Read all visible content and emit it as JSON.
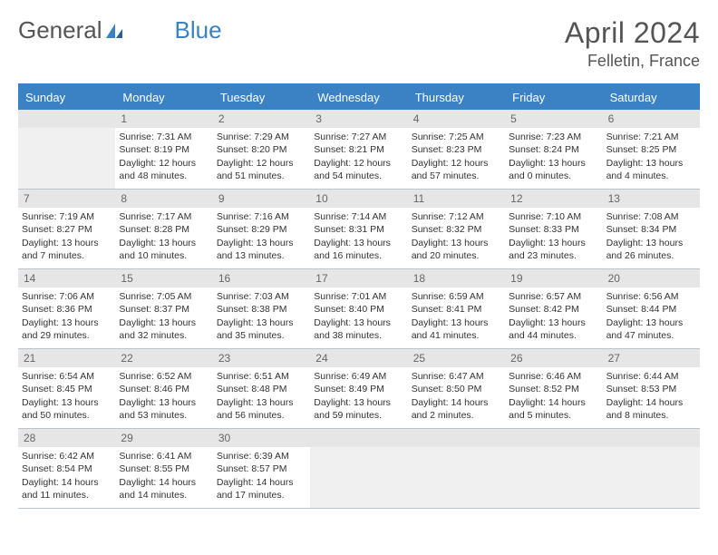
{
  "logo": {
    "text1": "General",
    "text2": "Blue"
  },
  "title": "April 2024",
  "location": "Felletin, France",
  "colors": {
    "header_bg": "#3b82c4",
    "header_text": "#ffffff",
    "daynum_bg": "#e6e6e6",
    "daynum_text": "#666666",
    "border": "#b8c4d0",
    "empty_bg": "#f0f0f0",
    "body_text": "#333333"
  },
  "weekdays": [
    "Sunday",
    "Monday",
    "Tuesday",
    "Wednesday",
    "Thursday",
    "Friday",
    "Saturday"
  ],
  "grid": {
    "rows": 5,
    "cols": 7,
    "start_offset": 1,
    "days_in_month": 30
  },
  "days": {
    "1": {
      "sunrise": "7:31 AM",
      "sunset": "8:19 PM",
      "daylight": "12 hours and 48 minutes."
    },
    "2": {
      "sunrise": "7:29 AM",
      "sunset": "8:20 PM",
      "daylight": "12 hours and 51 minutes."
    },
    "3": {
      "sunrise": "7:27 AM",
      "sunset": "8:21 PM",
      "daylight": "12 hours and 54 minutes."
    },
    "4": {
      "sunrise": "7:25 AM",
      "sunset": "8:23 PM",
      "daylight": "12 hours and 57 minutes."
    },
    "5": {
      "sunrise": "7:23 AM",
      "sunset": "8:24 PM",
      "daylight": "13 hours and 0 minutes."
    },
    "6": {
      "sunrise": "7:21 AM",
      "sunset": "8:25 PM",
      "daylight": "13 hours and 4 minutes."
    },
    "7": {
      "sunrise": "7:19 AM",
      "sunset": "8:27 PM",
      "daylight": "13 hours and 7 minutes."
    },
    "8": {
      "sunrise": "7:17 AM",
      "sunset": "8:28 PM",
      "daylight": "13 hours and 10 minutes."
    },
    "9": {
      "sunrise": "7:16 AM",
      "sunset": "8:29 PM",
      "daylight": "13 hours and 13 minutes."
    },
    "10": {
      "sunrise": "7:14 AM",
      "sunset": "8:31 PM",
      "daylight": "13 hours and 16 minutes."
    },
    "11": {
      "sunrise": "7:12 AM",
      "sunset": "8:32 PM",
      "daylight": "13 hours and 20 minutes."
    },
    "12": {
      "sunrise": "7:10 AM",
      "sunset": "8:33 PM",
      "daylight": "13 hours and 23 minutes."
    },
    "13": {
      "sunrise": "7:08 AM",
      "sunset": "8:34 PM",
      "daylight": "13 hours and 26 minutes."
    },
    "14": {
      "sunrise": "7:06 AM",
      "sunset": "8:36 PM",
      "daylight": "13 hours and 29 minutes."
    },
    "15": {
      "sunrise": "7:05 AM",
      "sunset": "8:37 PM",
      "daylight": "13 hours and 32 minutes."
    },
    "16": {
      "sunrise": "7:03 AM",
      "sunset": "8:38 PM",
      "daylight": "13 hours and 35 minutes."
    },
    "17": {
      "sunrise": "7:01 AM",
      "sunset": "8:40 PM",
      "daylight": "13 hours and 38 minutes."
    },
    "18": {
      "sunrise": "6:59 AM",
      "sunset": "8:41 PM",
      "daylight": "13 hours and 41 minutes."
    },
    "19": {
      "sunrise": "6:57 AM",
      "sunset": "8:42 PM",
      "daylight": "13 hours and 44 minutes."
    },
    "20": {
      "sunrise": "6:56 AM",
      "sunset": "8:44 PM",
      "daylight": "13 hours and 47 minutes."
    },
    "21": {
      "sunrise": "6:54 AM",
      "sunset": "8:45 PM",
      "daylight": "13 hours and 50 minutes."
    },
    "22": {
      "sunrise": "6:52 AM",
      "sunset": "8:46 PM",
      "daylight": "13 hours and 53 minutes."
    },
    "23": {
      "sunrise": "6:51 AM",
      "sunset": "8:48 PM",
      "daylight": "13 hours and 56 minutes."
    },
    "24": {
      "sunrise": "6:49 AM",
      "sunset": "8:49 PM",
      "daylight": "13 hours and 59 minutes."
    },
    "25": {
      "sunrise": "6:47 AM",
      "sunset": "8:50 PM",
      "daylight": "14 hours and 2 minutes."
    },
    "26": {
      "sunrise": "6:46 AM",
      "sunset": "8:52 PM",
      "daylight": "14 hours and 5 minutes."
    },
    "27": {
      "sunrise": "6:44 AM",
      "sunset": "8:53 PM",
      "daylight": "14 hours and 8 minutes."
    },
    "28": {
      "sunrise": "6:42 AM",
      "sunset": "8:54 PM",
      "daylight": "14 hours and 11 minutes."
    },
    "29": {
      "sunrise": "6:41 AM",
      "sunset": "8:55 PM",
      "daylight": "14 hours and 14 minutes."
    },
    "30": {
      "sunrise": "6:39 AM",
      "sunset": "8:57 PM",
      "daylight": "14 hours and 17 minutes."
    }
  },
  "labels": {
    "sunrise": "Sunrise:",
    "sunset": "Sunset:",
    "daylight": "Daylight:"
  }
}
